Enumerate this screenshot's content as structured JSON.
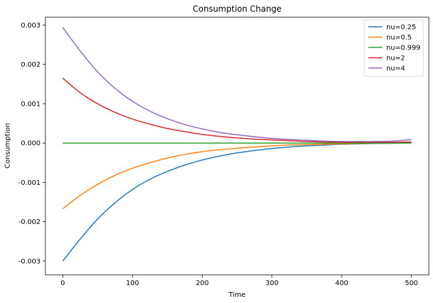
{
  "chart_data": {
    "type": "line",
    "title": "Consumption Change",
    "xlabel": "Time",
    "ylabel": "Consumption",
    "xlim": [
      -25,
      525
    ],
    "ylim": [
      -0.00335,
      0.0032
    ],
    "xticks": [
      0,
      100,
      200,
      300,
      400,
      500
    ],
    "xtick_labels": [
      "0",
      "100",
      "200",
      "300",
      "400",
      "500"
    ],
    "yticks": [
      -0.003,
      -0.002,
      -0.001,
      0.0,
      0.001,
      0.002,
      0.003
    ],
    "ytick_labels": [
      "-0.003",
      "-0.002",
      "-0.001",
      "0.000",
      "0.001",
      "0.002",
      "0.003"
    ],
    "grid": false,
    "legend_position": "top-right",
    "x": [
      0,
      25,
      50,
      75,
      100,
      125,
      150,
      175,
      200,
      225,
      250,
      275,
      300,
      325,
      350,
      375,
      400,
      425,
      450,
      475,
      500
    ],
    "series": [
      {
        "name": "nu=0.25",
        "color": "#1f77b4",
        "values": [
          -0.003,
          -0.00244,
          -0.00193,
          -0.00152,
          -0.00118,
          -0.00092,
          -0.00072,
          -0.00056,
          -0.00043,
          -0.00033,
          -0.00025,
          -0.00019,
          -0.00014,
          -0.0001,
          -7e-05,
          -5e-05,
          -3e-05,
          -2e-05,
          -1e-05,
          -5e-06,
          0.0
        ]
      },
      {
        "name": "nu=0.5",
        "color": "#ff7f0e",
        "values": [
          -0.00167,
          -0.00133,
          -0.00105,
          -0.00082,
          -0.00064,
          -0.0005,
          -0.00038,
          -0.00029,
          -0.00022,
          -0.00017,
          -0.00013,
          -0.0001,
          -7e-05,
          -5e-05,
          -4e-05,
          -3e-05,
          -2e-05,
          -1e-05,
          -5e-06,
          0.0,
          1e-05
        ]
      },
      {
        "name": "nu=0.999",
        "color": "#2ca02c",
        "values": [
          0.0,
          0.0,
          0.0,
          0.0,
          0.0,
          0.0,
          0.0,
          0.0,
          0.0,
          0.0,
          0.0,
          0.0,
          0.0,
          0.0,
          0.0,
          0.0,
          0.0,
          0.0,
          0.0,
          0.0,
          0.0
        ]
      },
      {
        "name": "nu=2",
        "color": "#d62728",
        "values": [
          0.00165,
          0.00128,
          0.001,
          0.00078,
          0.00061,
          0.00048,
          0.00037,
          0.00029,
          0.00022,
          0.00017,
          0.00013,
          0.0001,
          8e-05,
          6e-05,
          4e-05,
          3e-05,
          2e-05,
          2e-05,
          2e-05,
          2e-05,
          3e-05
        ]
      },
      {
        "name": "nu=4",
        "color": "#9467bd",
        "values": [
          0.00294,
          0.00234,
          0.00181,
          0.00139,
          0.00106,
          0.00081,
          0.00062,
          0.00047,
          0.00036,
          0.00027,
          0.00021,
          0.00016,
          0.00012,
          9e-05,
          7e-05,
          5e-05,
          4e-05,
          4e-05,
          4e-05,
          5e-05,
          9e-05
        ]
      }
    ]
  }
}
